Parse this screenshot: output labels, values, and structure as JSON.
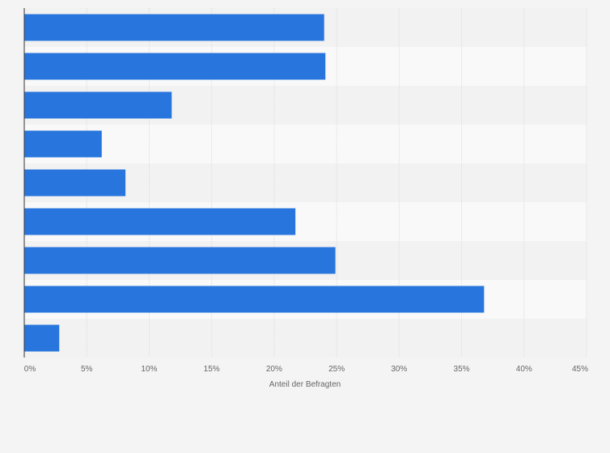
{
  "chart_data": {
    "type": "bar",
    "orientation": "horizontal",
    "categories": [
      "",
      "",
      "",
      "",
      "",
      "",
      "",
      "",
      ""
    ],
    "values": [
      24.0,
      24.1,
      11.8,
      6.2,
      8.1,
      21.7,
      24.9,
      36.8,
      2.8
    ],
    "title": "",
    "xlabel": "Anteil der Befragten",
    "ylabel": "",
    "xlim": [
      0,
      45
    ],
    "xticks": [
      {
        "value": 0,
        "label": "0%"
      },
      {
        "value": 5,
        "label": "5%"
      },
      {
        "value": 10,
        "label": "10%"
      },
      {
        "value": 15,
        "label": "15%"
      },
      {
        "value": 20,
        "label": "20%"
      },
      {
        "value": 25,
        "label": "25%"
      },
      {
        "value": 30,
        "label": "30%"
      },
      {
        "value": 35,
        "label": "35%"
      },
      {
        "value": 40,
        "label": "40%"
      },
      {
        "value": 45,
        "label": "45%"
      }
    ],
    "grid": "vertical",
    "legend": "none",
    "bar_color": "#2876dd",
    "band_colors": [
      "#f2f2f2",
      "#f9f9f9"
    ],
    "grid_color": "#dcdcdc",
    "axis_color": "#333333",
    "text_color": "#666666"
  }
}
